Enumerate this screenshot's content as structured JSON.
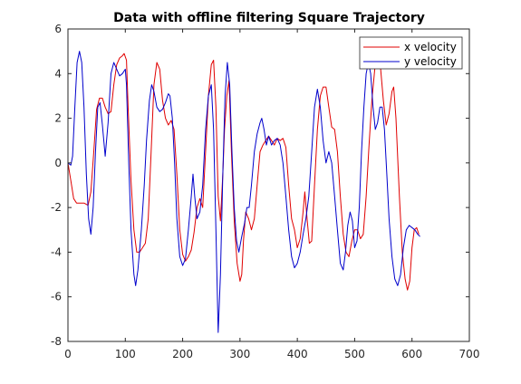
{
  "chart_data": {
    "type": "line",
    "title": "Data with offline filtering Square Trajectory",
    "xlabel": "",
    "ylabel": "",
    "xlim": [
      0,
      700
    ],
    "ylim": [
      -8,
      6
    ],
    "xticks": [
      0,
      100,
      200,
      300,
      400,
      500,
      600,
      700
    ],
    "yticks": [
      -8,
      -6,
      -4,
      -2,
      0,
      2,
      4,
      6
    ],
    "grid": false,
    "legend_position": "top-right",
    "series": [
      {
        "name": "x velocity",
        "color": "#e00000",
        "points": [
          [
            0,
            0.0
          ],
          [
            5,
            -0.8
          ],
          [
            10,
            -1.6
          ],
          [
            15,
            -1.8
          ],
          [
            20,
            -1.8
          ],
          [
            28,
            -1.8
          ],
          [
            35,
            -1.9
          ],
          [
            40,
            -1.3
          ],
          [
            45,
            0.5
          ],
          [
            50,
            2.4
          ],
          [
            55,
            2.9
          ],
          [
            60,
            2.9
          ],
          [
            65,
            2.5
          ],
          [
            70,
            2.2
          ],
          [
            75,
            2.3
          ],
          [
            80,
            3.5
          ],
          [
            85,
            4.4
          ],
          [
            90,
            4.7
          ],
          [
            95,
            4.8
          ],
          [
            98,
            4.9
          ],
          [
            102,
            4.6
          ],
          [
            105,
            2.5
          ],
          [
            110,
            -0.8
          ],
          [
            115,
            -3.0
          ],
          [
            120,
            -4.0
          ],
          [
            125,
            -4.0
          ],
          [
            130,
            -3.8
          ],
          [
            135,
            -3.6
          ],
          [
            140,
            -2.5
          ],
          [
            145,
            0.5
          ],
          [
            150,
            3.5
          ],
          [
            155,
            4.5
          ],
          [
            160,
            4.2
          ],
          [
            165,
            2.8
          ],
          [
            170,
            2.0
          ],
          [
            175,
            1.7
          ],
          [
            180,
            1.9
          ],
          [
            185,
            1.5
          ],
          [
            190,
            -0.5
          ],
          [
            195,
            -3.0
          ],
          [
            200,
            -4.1
          ],
          [
            205,
            -4.4
          ],
          [
            210,
            -4.2
          ],
          [
            215,
            -3.9
          ],
          [
            220,
            -3.1
          ],
          [
            225,
            -2.0
          ],
          [
            230,
            -1.6
          ],
          [
            235,
            -2.0
          ],
          [
            240,
            0.5
          ],
          [
            245,
            3.0
          ],
          [
            250,
            4.4
          ],
          [
            254,
            4.6
          ],
          [
            258,
            2.5
          ],
          [
            262,
            -1.5
          ],
          [
            266,
            -2.6
          ],
          [
            270,
            -0.5
          ],
          [
            273,
            1.5
          ],
          [
            277,
            3.0
          ],
          [
            281,
            3.7
          ],
          [
            285,
            0.5
          ],
          [
            290,
            -2.6
          ],
          [
            295,
            -4.5
          ],
          [
            300,
            -5.3
          ],
          [
            303,
            -5.0
          ],
          [
            306,
            -3.5
          ],
          [
            310,
            -2.2
          ],
          [
            315,
            -2.5
          ],
          [
            320,
            -3.0
          ],
          [
            325,
            -2.5
          ],
          [
            330,
            -1.0
          ],
          [
            335,
            0.5
          ],
          [
            340,
            0.8
          ],
          [
            345,
            1.0
          ],
          [
            350,
            1.2
          ],
          [
            355,
            1.0
          ],
          [
            360,
            0.8
          ],
          [
            365,
            1.1
          ],
          [
            370,
            1.0
          ],
          [
            375,
            1.1
          ],
          [
            380,
            0.7
          ],
          [
            385,
            -1.0
          ],
          [
            390,
            -2.5
          ],
          [
            395,
            -3.0
          ],
          [
            400,
            -3.8
          ],
          [
            405,
            -3.4
          ],
          [
            410,
            -2.2
          ],
          [
            413,
            -1.3
          ],
          [
            417,
            -2.5
          ],
          [
            421,
            -3.6
          ],
          [
            425,
            -3.5
          ],
          [
            430,
            -1.0
          ],
          [
            435,
            1.5
          ],
          [
            440,
            3.0
          ],
          [
            445,
            3.4
          ],
          [
            450,
            3.4
          ],
          [
            455,
            2.5
          ],
          [
            460,
            1.6
          ],
          [
            465,
            1.5
          ],
          [
            470,
            0.5
          ],
          [
            475,
            -1.5
          ],
          [
            480,
            -3.2
          ],
          [
            485,
            -4.0
          ],
          [
            490,
            -4.2
          ],
          [
            495,
            -3.5
          ],
          [
            500,
            -3.0
          ],
          [
            505,
            -3.0
          ],
          [
            510,
            -3.4
          ],
          [
            515,
            -3.2
          ],
          [
            520,
            -1.5
          ],
          [
            525,
            0.8
          ],
          [
            530,
            2.8
          ],
          [
            535,
            4.2
          ],
          [
            540,
            4.5
          ],
          [
            545,
            4.3
          ],
          [
            550,
            2.8
          ],
          [
            555,
            1.7
          ],
          [
            560,
            2.2
          ],
          [
            565,
            3.2
          ],
          [
            568,
            3.4
          ],
          [
            572,
            2.0
          ],
          [
            578,
            -1.5
          ],
          [
            583,
            -4.0
          ],
          [
            588,
            -5.2
          ],
          [
            592,
            -5.7
          ],
          [
            596,
            -5.3
          ],
          [
            600,
            -3.8
          ],
          [
            604,
            -3.0
          ],
          [
            608,
            -2.9
          ],
          [
            612,
            -3.2
          ]
        ]
      },
      {
        "name": "y velocity",
        "color": "#0000cc",
        "points": [
          [
            0,
            0.0
          ],
          [
            5,
            -0.1
          ],
          [
            8,
            0.3
          ],
          [
            12,
            2.5
          ],
          [
            16,
            4.5
          ],
          [
            20,
            5.0
          ],
          [
            24,
            4.5
          ],
          [
            28,
            2.5
          ],
          [
            32,
            -0.5
          ],
          [
            36,
            -2.5
          ],
          [
            40,
            -3.2
          ],
          [
            44,
            -2.0
          ],
          [
            48,
            0.5
          ],
          [
            52,
            2.5
          ],
          [
            56,
            2.7
          ],
          [
            60,
            1.7
          ],
          [
            65,
            0.3
          ],
          [
            70,
            1.8
          ],
          [
            75,
            4.0
          ],
          [
            80,
            4.5
          ],
          [
            85,
            4.2
          ],
          [
            90,
            3.9
          ],
          [
            95,
            4.0
          ],
          [
            100,
            4.2
          ],
          [
            102,
            3.5
          ],
          [
            106,
            0.0
          ],
          [
            110,
            -3.0
          ],
          [
            115,
            -5.0
          ],
          [
            118,
            -5.5
          ],
          [
            122,
            -4.8
          ],
          [
            128,
            -3.0
          ],
          [
            133,
            -1.0
          ],
          [
            137,
            1.0
          ],
          [
            142,
            2.8
          ],
          [
            146,
            3.5
          ],
          [
            150,
            3.2
          ],
          [
            155,
            2.5
          ],
          [
            160,
            2.3
          ],
          [
            165,
            2.4
          ],
          [
            170,
            2.7
          ],
          [
            175,
            3.1
          ],
          [
            178,
            3.0
          ],
          [
            182,
            2.0
          ],
          [
            186,
            0.0
          ],
          [
            190,
            -2.5
          ],
          [
            195,
            -4.2
          ],
          [
            200,
            -4.6
          ],
          [
            205,
            -4.3
          ],
          [
            210,
            -3.0
          ],
          [
            215,
            -1.5
          ],
          [
            218,
            -0.5
          ],
          [
            221,
            -1.5
          ],
          [
            225,
            -2.5
          ],
          [
            230,
            -2.2
          ],
          [
            235,
            -1.0
          ],
          [
            240,
            1.5
          ],
          [
            245,
            3.0
          ],
          [
            250,
            3.5
          ],
          [
            254,
            1.5
          ],
          [
            258,
            -3.0
          ],
          [
            262,
            -7.6
          ],
          [
            266,
            -5.0
          ],
          [
            270,
            -0.5
          ],
          [
            274,
            3.0
          ],
          [
            278,
            4.5
          ],
          [
            282,
            3.5
          ],
          [
            286,
            0.5
          ],
          [
            290,
            -2.0
          ],
          [
            294,
            -3.5
          ],
          [
            298,
            -4.0
          ],
          [
            303,
            -3.3
          ],
          [
            308,
            -2.7
          ],
          [
            312,
            -2.0
          ],
          [
            316,
            -2.0
          ],
          [
            320,
            -1.0
          ],
          [
            325,
            0.5
          ],
          [
            330,
            1.3
          ],
          [
            335,
            1.8
          ],
          [
            338,
            2.0
          ],
          [
            342,
            1.5
          ],
          [
            346,
            0.8
          ],
          [
            350,
            1.2
          ],
          [
            355,
            0.8
          ],
          [
            360,
            1.0
          ],
          [
            365,
            1.1
          ],
          [
            370,
            0.8
          ],
          [
            375,
            0.0
          ],
          [
            380,
            -1.5
          ],
          [
            385,
            -3.0
          ],
          [
            390,
            -4.2
          ],
          [
            395,
            -4.7
          ],
          [
            400,
            -4.5
          ],
          [
            405,
            -4.0
          ],
          [
            410,
            -3.2
          ],
          [
            415,
            -2.5
          ],
          [
            420,
            -1.5
          ],
          [
            425,
            0.5
          ],
          [
            430,
            2.5
          ],
          [
            435,
            3.3
          ],
          [
            440,
            2.5
          ],
          [
            445,
            1.0
          ],
          [
            450,
            0.0
          ],
          [
            455,
            0.5
          ],
          [
            460,
            0.0
          ],
          [
            465,
            -1.5
          ],
          [
            470,
            -3.0
          ],
          [
            475,
            -4.5
          ],
          [
            480,
            -4.8
          ],
          [
            484,
            -4.0
          ],
          [
            488,
            -2.8
          ],
          [
            492,
            -2.2
          ],
          [
            496,
            -2.6
          ],
          [
            500,
            -3.8
          ],
          [
            504,
            -3.5
          ],
          [
            508,
            -2.0
          ],
          [
            512,
            0.5
          ],
          [
            516,
            2.5
          ],
          [
            520,
            4.0
          ],
          [
            524,
            4.5
          ],
          [
            528,
            4.0
          ],
          [
            532,
            2.5
          ],
          [
            536,
            1.5
          ],
          [
            540,
            1.8
          ],
          [
            544,
            2.5
          ],
          [
            548,
            2.5
          ],
          [
            552,
            1.5
          ],
          [
            556,
            -0.5
          ],
          [
            560,
            -2.5
          ],
          [
            565,
            -4.2
          ],
          [
            570,
            -5.2
          ],
          [
            575,
            -5.5
          ],
          [
            580,
            -5.0
          ],
          [
            585,
            -3.8
          ],
          [
            590,
            -3.0
          ],
          [
            595,
            -2.8
          ],
          [
            600,
            -2.9
          ],
          [
            605,
            -3.0
          ],
          [
            610,
            -3.2
          ],
          [
            614,
            -3.3
          ]
        ]
      }
    ]
  }
}
